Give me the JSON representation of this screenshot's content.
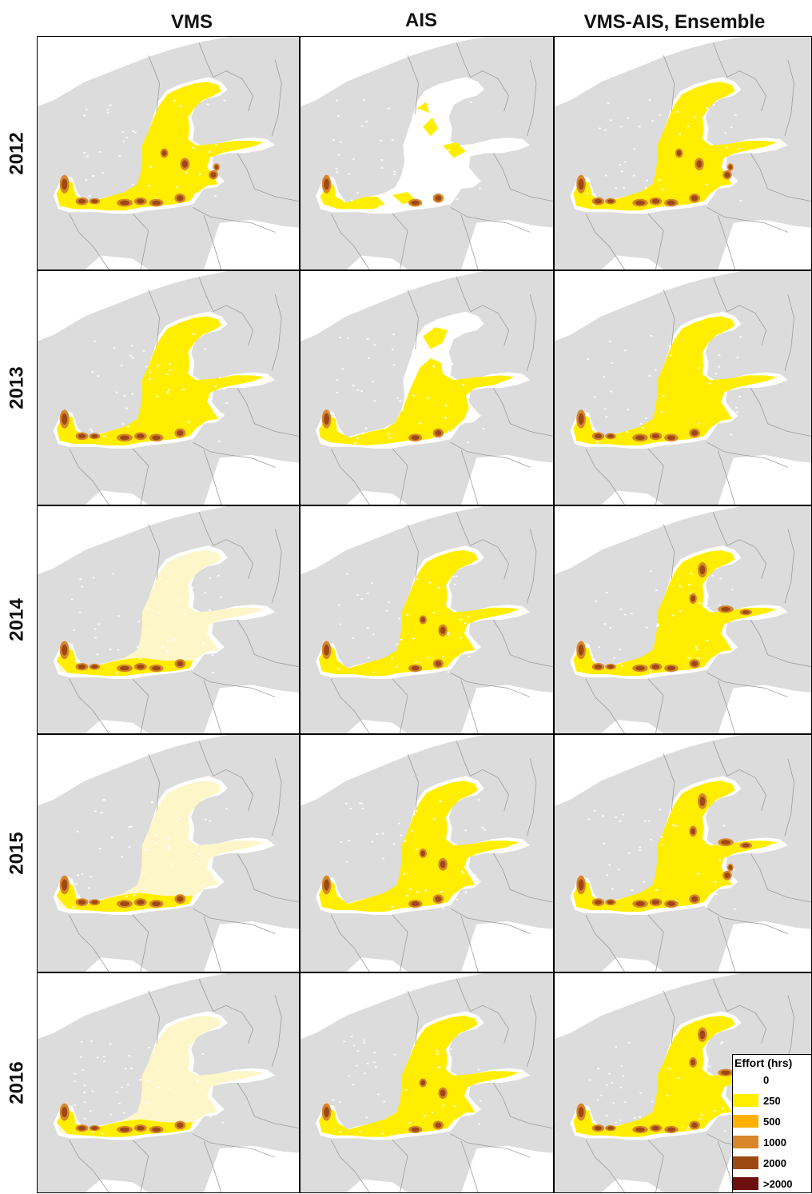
{
  "columns": [
    "VMS",
    "AIS",
    "VMS-AIS, Ensemble"
  ],
  "rows": [
    "2012",
    "2013",
    "2014",
    "2015",
    "2016"
  ],
  "colors": {
    "land": "#dcdcdc",
    "border": "#9a9a9a",
    "sea_zero": "#ffffff",
    "pale": "#fdf6c8",
    "e250": "#ffee00",
    "e500": "#ffb000",
    "e1000": "#d9862a",
    "e2000": "#9b4a14",
    "e2000p": "#6b0f0f"
  },
  "legend": {
    "title": "Effort (hrs)",
    "items": [
      {
        "label": "0",
        "color": "#ffffff"
      },
      {
        "label": "250",
        "color": "#ffee00"
      },
      {
        "label": "500",
        "color": "#ffb000"
      },
      {
        "label": "1000",
        "color": "#d9862a"
      },
      {
        "label": "2000",
        "color": "#9b4a14"
      },
      {
        "label": ">2000",
        "color": "#6b0f0f"
      }
    ]
  },
  "effort_maps": [
    {
      "row": "2012",
      "col": "VMS",
      "base": "yellow",
      "hot": [
        "kattegat",
        "belt",
        "bornholm",
        "poland",
        "gotland",
        "riga"
      ]
    },
    {
      "row": "2012",
      "col": "AIS",
      "base": "sparse",
      "hot": [
        "kattegat",
        "poland"
      ]
    },
    {
      "row": "2012",
      "col": "VMS-AIS, Ensemble",
      "base": "yellow",
      "hot": [
        "kattegat",
        "belt",
        "bornholm",
        "poland",
        "gotland",
        "riga"
      ]
    },
    {
      "row": "2013",
      "col": "VMS",
      "base": "yellow",
      "hot": [
        "kattegat",
        "belt",
        "bornholm",
        "poland"
      ]
    },
    {
      "row": "2013",
      "col": "AIS",
      "base": "medium",
      "hot": [
        "kattegat",
        "poland"
      ]
    },
    {
      "row": "2013",
      "col": "VMS-AIS, Ensemble",
      "base": "yellow",
      "hot": [
        "kattegat",
        "belt",
        "bornholm",
        "poland"
      ]
    },
    {
      "row": "2014",
      "col": "VMS",
      "base": "pale",
      "hot": [
        "kattegat",
        "belt",
        "bornholm",
        "poland"
      ]
    },
    {
      "row": "2014",
      "col": "AIS",
      "base": "yellow",
      "hot": [
        "kattegat",
        "poland",
        "gotland"
      ]
    },
    {
      "row": "2014",
      "col": "VMS-AIS, Ensemble",
      "base": "yellow",
      "hot": [
        "kattegat",
        "belt",
        "bornholm",
        "poland",
        "bothnia",
        "finland"
      ]
    },
    {
      "row": "2015",
      "col": "VMS",
      "base": "pale",
      "hot": [
        "kattegat",
        "belt",
        "bornholm",
        "poland"
      ]
    },
    {
      "row": "2015",
      "col": "AIS",
      "base": "yellow",
      "hot": [
        "kattegat",
        "poland",
        "gotland"
      ]
    },
    {
      "row": "2015",
      "col": "VMS-AIS, Ensemble",
      "base": "yellow",
      "hot": [
        "kattegat",
        "belt",
        "bornholm",
        "poland",
        "bothnia",
        "finland",
        "riga"
      ]
    },
    {
      "row": "2016",
      "col": "VMS",
      "base": "pale",
      "hot": [
        "kattegat",
        "belt",
        "bornholm",
        "poland"
      ]
    },
    {
      "row": "2016",
      "col": "AIS",
      "base": "yellow",
      "hot": [
        "kattegat",
        "poland",
        "gotland"
      ]
    },
    {
      "row": "2016",
      "col": "VMS-AIS, Ensemble",
      "base": "yellow",
      "hot": [
        "kattegat",
        "belt",
        "bornholm",
        "poland",
        "bothnia",
        "finland"
      ]
    }
  ]
}
